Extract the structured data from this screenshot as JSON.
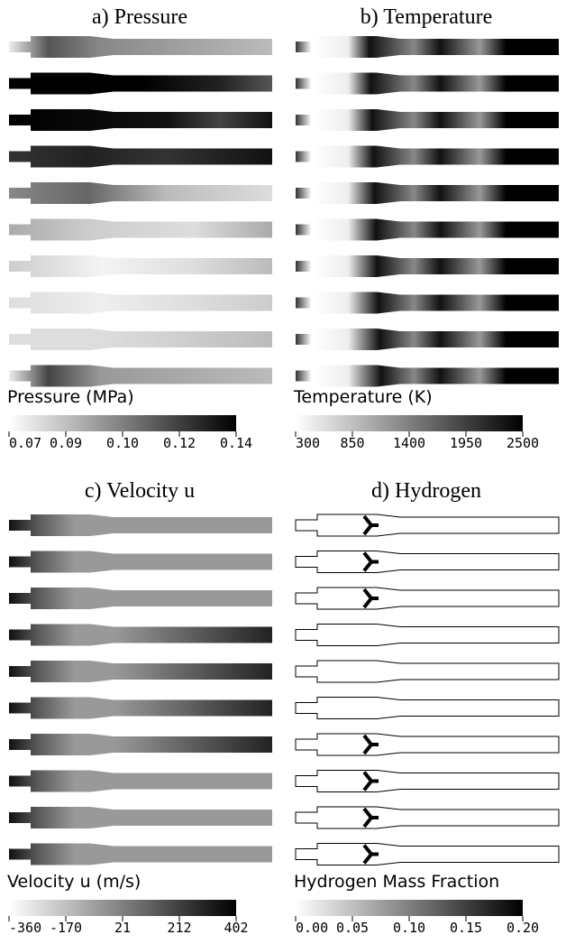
{
  "panels": [
    {
      "title": "a) Pressure",
      "colorbar_label": "Pressure (MPa)",
      "ticks": [
        "0.07",
        "0.09",
        "0.10",
        "0.12",
        "0.14"
      ]
    },
    {
      "title": "b) Temperature",
      "colorbar_label": "Temperature (K)",
      "ticks": [
        "300",
        "850",
        "1400",
        "1950",
        "2500"
      ]
    },
    {
      "title": "c) Velocity u",
      "colorbar_label": "Velocity u (m/s)",
      "ticks": [
        "-360",
        "-170",
        "21",
        "212",
        "402"
      ]
    },
    {
      "title": "d) Hydrogen",
      "colorbar_label": "Hydrogen Mass Fraction",
      "ticks": [
        "0.00",
        "0.05",
        "0.10",
        "0.15",
        "0.20"
      ]
    }
  ]
}
